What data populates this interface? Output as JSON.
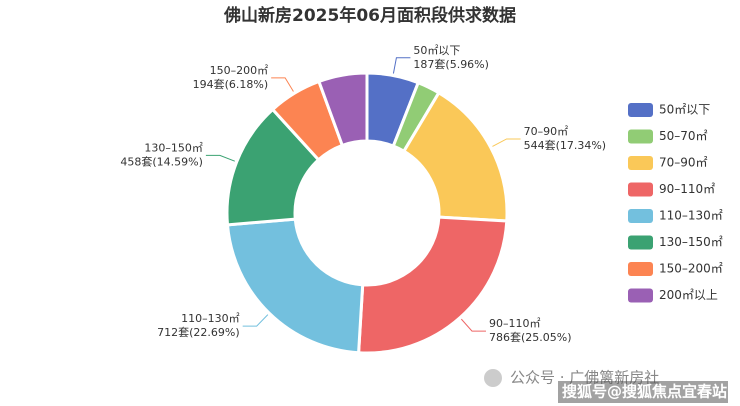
{
  "chart_data": {
    "type": "pie",
    "title": "佛山新房2025年06月面积段供求数据",
    "categories": [
      "50㎡以下",
      "50–70㎡",
      "70–90㎡",
      "90–110㎡",
      "110–130㎡",
      "130–150㎡",
      "150–200㎡",
      "200㎡以上"
    ],
    "values": [
      187,
      82,
      544,
      786,
      712,
      458,
      194,
      175
    ],
    "value_labels": [
      "187套(5.96%)",
      null,
      "544套(17.34%)",
      "786套(25.05%)",
      "712套(22.69%)",
      "458套(14.59%)",
      "194套(6.18%)",
      null
    ],
    "colors": [
      "#5470c6",
      "#91cc75",
      "#fac858",
      "#ee6666",
      "#73c0de",
      "#3ba272",
      "#fc8452",
      "#9a60b4"
    ],
    "legend": "right",
    "watermark": [
      "公众号 · 广佛篱新房社",
      "搜狐号@搜狐焦点宜春站"
    ]
  }
}
